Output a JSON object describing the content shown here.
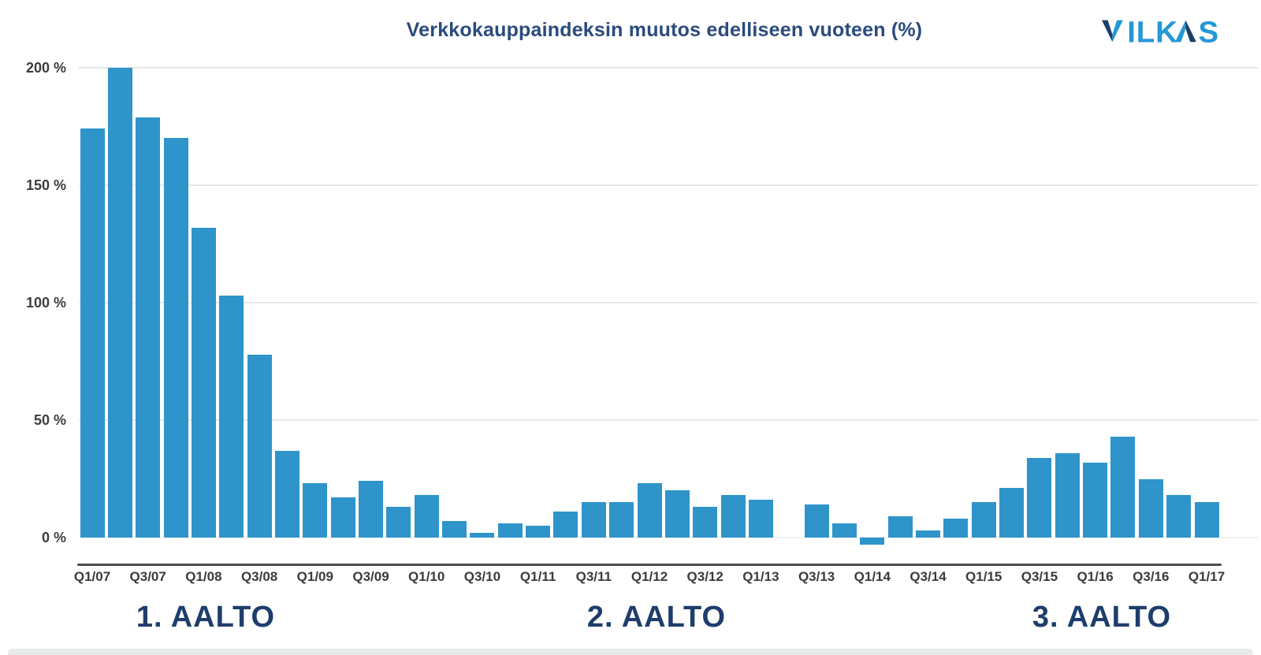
{
  "header": {
    "title": "Verkkokauppaindeksin muutos edelliseen vuoteen (%)",
    "logo_text": "VILKAS",
    "logo_color_light": "#2598d6",
    "logo_color_dark": "#1d3f66"
  },
  "chart_data": {
    "type": "bar",
    "title": "Verkkokauppaindeksin muutos edelliseen vuoteen (%)",
    "ylabel": "",
    "xlabel": "",
    "bar_color": "#2E94CA",
    "grid": true,
    "legend_position": "none",
    "ylim": [
      -10,
      210
    ],
    "y_ticks": [
      "200 %",
      "150 %",
      "100 %",
      "50 %",
      "0 %"
    ],
    "y_tick_values": [
      200,
      150,
      100,
      50,
      0
    ],
    "categories": [
      "Q1/07",
      "Q2/07",
      "Q3/07",
      "Q4/07",
      "Q1/08",
      "Q2/08",
      "Q3/08",
      "Q4/08",
      "Q1/09",
      "Q2/09",
      "Q3/09",
      "Q4/09",
      "Q1/10",
      "Q2/10",
      "Q3/10",
      "Q4/10",
      "Q1/11",
      "Q2/11",
      "Q3/11",
      "Q4/11",
      "Q1/12",
      "Q2/12",
      "Q3/12",
      "Q4/12",
      "Q1/13",
      "Q2/13",
      "Q3/13",
      "Q4/13",
      "Q1/14",
      "Q2/14",
      "Q3/14",
      "Q4/14",
      "Q1/15",
      "Q2/15",
      "Q3/15",
      "Q4/15",
      "Q1/16",
      "Q2/16",
      "Q3/16",
      "Q4/16",
      "Q1/17"
    ],
    "values": [
      174,
      200,
      179,
      170,
      132,
      103,
      78,
      37,
      23,
      17,
      24,
      13,
      18,
      7,
      2,
      6,
      5,
      11,
      15,
      15,
      23,
      20,
      13,
      18,
      16,
      0,
      14,
      6,
      -3,
      9,
      3,
      8,
      15,
      21,
      34,
      36,
      32,
      43,
      25,
      18,
      15
    ],
    "x_tick_labels": [
      "Q1/07",
      "Q3/07",
      "Q1/08",
      "Q3/08",
      "Q1/09",
      "Q3/09",
      "Q1/10",
      "Q3/10",
      "Q1/11",
      "Q3/11",
      "Q1/12",
      "Q3/12",
      "Q1/13",
      "Q3/13",
      "Q1/14",
      "Q3/14",
      "Q1/15",
      "Q3/15",
      "Q1/16",
      "Q3/16",
      "Q1/17"
    ]
  },
  "annotations": {
    "waves": [
      {
        "label": "1. AALTO"
      },
      {
        "label": "2. AALTO"
      },
      {
        "label": "3. AALTO"
      }
    ]
  }
}
